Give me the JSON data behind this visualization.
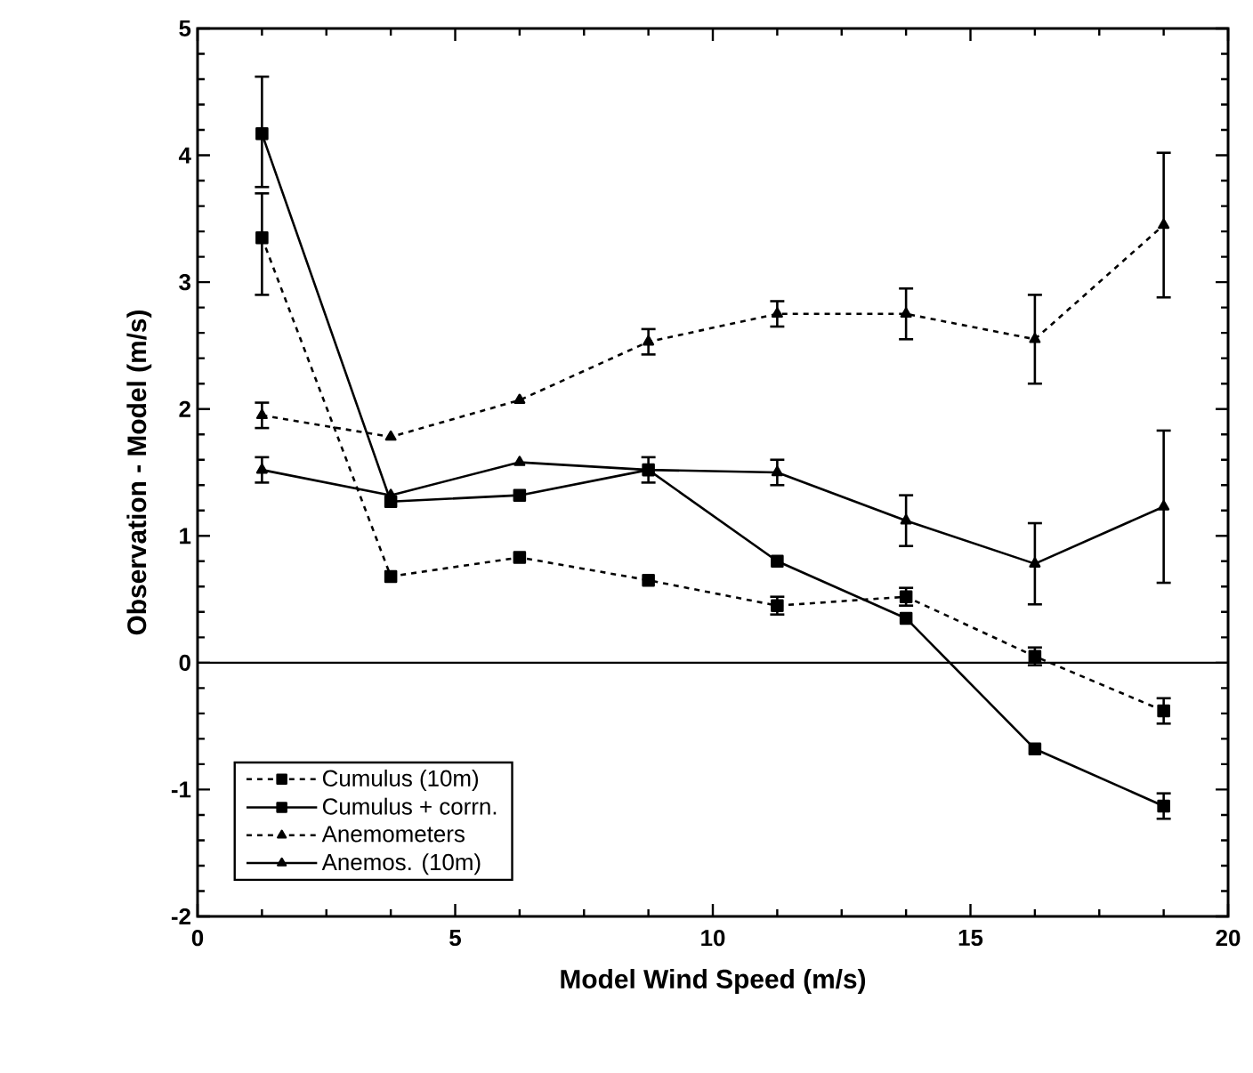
{
  "chart_data": {
    "type": "line",
    "xlabel": "Model Wind Speed (m/s)",
    "ylabel": "Observation - Model (m/s)",
    "x": [
      1.25,
      3.75,
      6.25,
      8.75,
      11.25,
      13.75,
      16.25,
      18.75
    ],
    "series": [
      {
        "name": "Cumulus (10m)",
        "color": "#000000",
        "marker": "square",
        "line_style": "dashed",
        "values": [
          3.35,
          0.68,
          0.83,
          0.65,
          0.45,
          0.52,
          0.05,
          -0.38
        ],
        "errors": [
          [
            2.9,
            3.7
          ],
          null,
          null,
          null,
          0.07,
          0.07,
          0.07,
          0.1
        ]
      },
      {
        "name": "Cumulus + corrn.",
        "color": "#000000",
        "marker": "square",
        "line_style": "solid",
        "values": [
          4.17,
          1.27,
          1.32,
          1.52,
          0.8,
          0.35,
          -0.68,
          -1.13
        ],
        "errors": [
          [
            3.75,
            4.62
          ],
          null,
          null,
          null,
          null,
          null,
          null,
          0.1
        ]
      },
      {
        "name": "Anemometers",
        "color": "#000000",
        "marker": "triangle",
        "line_style": "dashed",
        "values": [
          1.95,
          1.78,
          2.07,
          2.53,
          2.75,
          2.75,
          2.55,
          3.45
        ],
        "errors": [
          0.1,
          null,
          null,
          0.1,
          0.1,
          0.2,
          0.35,
          0.57
        ]
      },
      {
        "name": "Anemos. (10m)",
        "color": "#000000",
        "marker": "triangle",
        "line_style": "solid",
        "values": [
          1.52,
          1.32,
          1.58,
          1.52,
          1.5,
          1.12,
          0.78,
          1.23
        ],
        "errors": [
          0.1,
          null,
          null,
          0.1,
          0.1,
          0.2,
          0.32,
          0.6
        ]
      }
    ],
    "ref_lines": [
      {
        "axis": "y",
        "value": 0,
        "color": "#000000",
        "line_style": "solid"
      }
    ],
    "xlim": [
      0,
      20
    ],
    "xticks": [
      0,
      5,
      10,
      15,
      20
    ],
    "ylim": [
      -2,
      5
    ],
    "yticks": [
      -2,
      -1,
      0,
      1,
      2,
      3,
      4,
      5
    ],
    "grid": false,
    "legend": "bottom left"
  }
}
